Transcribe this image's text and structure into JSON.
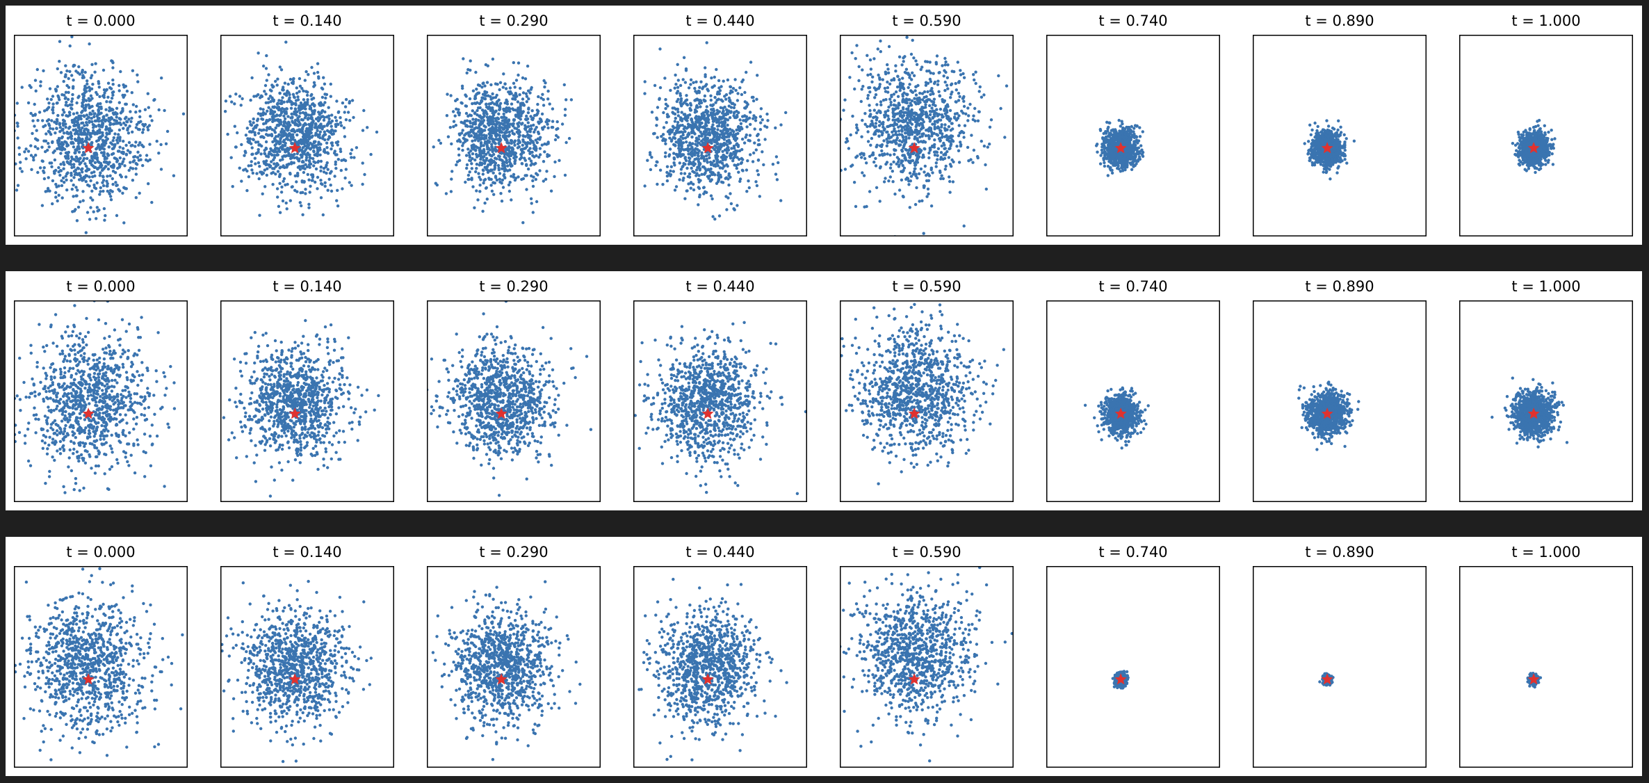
{
  "colors": {
    "scatter": "#3a74b0",
    "star": "#e0322f",
    "background": "#1f1f1f",
    "panel_bg": "#ffffff",
    "frame": "#000000"
  },
  "chart_data": [
    {
      "type": "scatter",
      "rows": 3,
      "columns": 8,
      "row_panel_titles": [
        [
          "t = 0.000",
          "t = 0.140",
          "t = 0.290",
          "t = 0.440",
          "t = 0.590",
          "t = 0.740",
          "t = 0.890",
          "t = 1.000"
        ],
        [
          "t = 0.000",
          "t = 0.140",
          "t = 0.290",
          "t = 0.440",
          "t = 0.590",
          "t = 0.740",
          "t = 0.890",
          "t = 1.000"
        ],
        [
          "t = 0.000",
          "t = 0.140",
          "t = 0.290",
          "t = 0.440",
          "t = 0.590",
          "t = 0.740",
          "t = 0.890",
          "t = 1.000"
        ]
      ],
      "t": [
        0.0,
        0.14,
        0.29,
        0.44,
        0.59,
        0.74,
        0.89,
        1.0
      ],
      "xlim": [
        -2.1,
        2.1
      ],
      "ylim": [
        -2.4,
        2.4
      ],
      "star_marker": {
        "x": -0.3,
        "y": -0.3
      },
      "points_per_panel": 1000,
      "grid": false,
      "axis_ticks": false,
      "legend": "none",
      "row_cluster_spread": [
        [
          1.0,
          0.85,
          0.85,
          0.85,
          1.0,
          0.28,
          0.25,
          0.23
        ],
        [
          1.0,
          0.85,
          0.85,
          0.85,
          1.0,
          0.28,
          0.32,
          0.34
        ],
        [
          1.0,
          0.85,
          0.85,
          0.85,
          1.0,
          0.08,
          0.06,
          0.06
        ]
      ],
      "row_cluster_center": [
        [
          [
            -0.3,
            0.0
          ],
          [
            -0.3,
            0.0
          ],
          [
            -0.3,
            0.0
          ],
          [
            -0.3,
            0.0
          ],
          [
            -0.3,
            0.3
          ],
          [
            -0.3,
            -0.3
          ],
          [
            -0.3,
            -0.3
          ],
          [
            -0.3,
            -0.3
          ]
        ],
        [
          [
            -0.3,
            0.0
          ],
          [
            -0.3,
            0.0
          ],
          [
            -0.3,
            0.0
          ],
          [
            -0.3,
            0.0
          ],
          [
            -0.3,
            0.3
          ],
          [
            -0.3,
            -0.3
          ],
          [
            -0.3,
            -0.3
          ],
          [
            -0.3,
            -0.3
          ]
        ],
        [
          [
            -0.3,
            0.0
          ],
          [
            -0.3,
            0.0
          ],
          [
            -0.3,
            0.0
          ],
          [
            -0.3,
            0.0
          ],
          [
            -0.3,
            0.3
          ],
          [
            -0.3,
            -0.3
          ],
          [
            -0.3,
            -0.3
          ],
          [
            -0.3,
            -0.3
          ]
        ]
      ]
    }
  ]
}
